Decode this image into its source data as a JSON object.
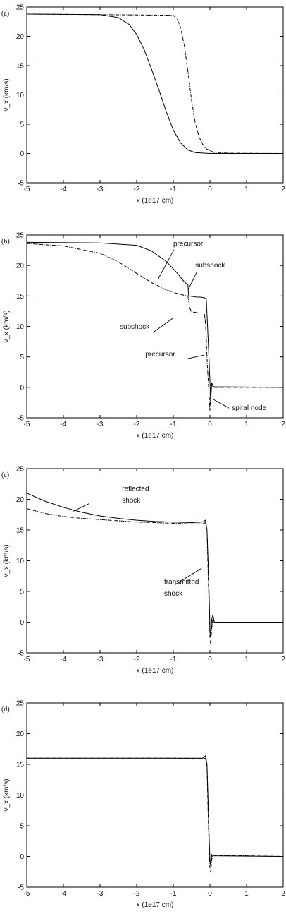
{
  "chart_data": [
    {
      "panel": "(a)",
      "type": "line",
      "xlabel": "x (1e17 cm)",
      "ylabel": "v_x (km/s)",
      "xlim": [
        -5,
        2
      ],
      "ylim": [
        -5,
        25
      ],
      "xticks": [
        "-5",
        "-4",
        "-3",
        "-2",
        "-1",
        "0",
        "1",
        "2"
      ],
      "yticks": [
        "-5",
        "0",
        "5",
        "10",
        "15",
        "20",
        "25"
      ],
      "grid": false,
      "annotations": [],
      "series": [
        {
          "style": "solid",
          "x": [
            -5,
            -3,
            -2.5,
            -2.2,
            -2.0,
            -1.8,
            -1.6,
            -1.4,
            -1.2,
            -1.0,
            -0.8,
            -0.6,
            -0.4,
            0,
            2
          ],
          "y": [
            23.8,
            23.7,
            23.2,
            22.0,
            20.3,
            17.8,
            14.5,
            11.0,
            7.3,
            4.0,
            1.8,
            0.6,
            0.15,
            0,
            0
          ]
        },
        {
          "style": "dashed",
          "x": [
            -5,
            -1.0,
            -0.9,
            -0.8,
            -0.7,
            -0.6,
            -0.5,
            -0.4,
            -0.3,
            -0.2,
            -0.1,
            0.1,
            0.5,
            2
          ],
          "y": [
            23.8,
            23.6,
            23.0,
            21.5,
            18.5,
            14.0,
            9.0,
            5.2,
            2.9,
            1.6,
            0.8,
            0.2,
            0.05,
            0
          ]
        }
      ]
    },
    {
      "panel": "(b)",
      "type": "line",
      "xlabel": "x (1e17 cm)",
      "ylabel": "v_x (km/s)",
      "xlim": [
        -5,
        2
      ],
      "ylim": [
        -5,
        25
      ],
      "xticks": [
        "-5",
        "-4",
        "-3",
        "-2",
        "-1",
        "0",
        "1",
        "2"
      ],
      "yticks": [
        "-5",
        "0",
        "5",
        "10",
        "15",
        "20",
        "25"
      ],
      "grid": false,
      "annotations": [
        {
          "text": "precursor",
          "x": -1.0,
          "y": 23.2
        },
        {
          "text": "subshock",
          "x": -0.4,
          "y": 19.7
        },
        {
          "text": "subshock",
          "x": -1.65,
          "y": 9.6
        },
        {
          "text": "precursor",
          "x": -0.95,
          "y": 5.1
        },
        {
          "text": "spiral node",
          "x": 0.6,
          "y": -3.7
        }
      ],
      "series": [
        {
          "style": "solid",
          "x": [
            -5,
            -3,
            -2.0,
            -1.6,
            -1.2,
            -0.9,
            -0.7,
            -0.6,
            -0.58,
            -0.45,
            -0.35,
            -0.25,
            -0.15,
            -0.1,
            -0.08,
            -0.05,
            -0.02,
            0.0,
            0.02,
            0.05,
            0.08,
            0.12,
            2
          ],
          "y": [
            23.8,
            23.7,
            23.3,
            22.4,
            20.7,
            18.8,
            17.3,
            16.8,
            15.0,
            14.9,
            14.8,
            14.8,
            14.7,
            14.5,
            12.0,
            8.0,
            4.0,
            1.0,
            -2.5,
            0.8,
            0.2,
            0.1,
            0
          ]
        },
        {
          "style": "dashed",
          "x": [
            -5,
            -4,
            -3,
            -2.5,
            -2.0,
            -1.6,
            -1.2,
            -0.9,
            -0.7,
            -0.6,
            -0.55,
            -0.5,
            -0.4,
            -0.3,
            -0.2,
            -0.15,
            -0.12,
            -0.1,
            -0.08,
            -0.06,
            -0.04,
            -0.02,
            0.0,
            0.02,
            0.04,
            0.08,
            0.12,
            2
          ],
          "y": [
            23.6,
            23.2,
            22.0,
            20.6,
            18.7,
            17.2,
            16.0,
            15.4,
            15.1,
            15.0,
            13.0,
            12.4,
            12.3,
            12.2,
            12.2,
            12.2,
            10.5,
            8.0,
            5.0,
            2.5,
            0.5,
            -1.5,
            -3.8,
            -1.0,
            0.5,
            0.1,
            0,
            0
          ]
        }
      ]
    },
    {
      "panel": "(c)",
      "type": "line",
      "xlabel": "x (1e17 cm)",
      "ylabel": "v_x (km/s)",
      "xlim": [
        -5,
        2
      ],
      "ylim": [
        -5,
        25
      ],
      "xticks": [
        "-5",
        "-4",
        "-3",
        "-2",
        "-1",
        "0",
        "1",
        "2"
      ],
      "yticks": [
        "-5",
        "0",
        "5",
        "10",
        "15",
        "20",
        "25"
      ],
      "grid": false,
      "annotations": [
        {
          "text": "reflected",
          "x": -2.4,
          "y": 21.4
        },
        {
          "text": "shock",
          "x": -2.4,
          "y": 19.5
        },
        {
          "text": "transmitted",
          "x": -1.25,
          "y": 6.2
        },
        {
          "text": "shock",
          "x": -1.25,
          "y": 4.3
        }
      ],
      "series": [
        {
          "style": "solid",
          "x": [
            -5,
            -4.5,
            -4.0,
            -3.5,
            -3.0,
            -2.5,
            -2.0,
            -1.5,
            -1.0,
            -0.5,
            -0.2,
            -0.12,
            -0.08,
            -0.05,
            -0.02,
            0.0,
            0.02,
            0.05,
            0.08,
            0.12,
            2
          ],
          "y": [
            21.0,
            19.7,
            18.7,
            17.9,
            17.3,
            16.9,
            16.6,
            16.4,
            16.3,
            16.2,
            16.3,
            16.6,
            15.0,
            10.0,
            4.0,
            -1.0,
            -2.5,
            0.5,
            1.2,
            0,
            0
          ]
        },
        {
          "style": "dashed",
          "x": [
            -5,
            -4.5,
            -4.0,
            -3.5,
            -3.0,
            -2.5,
            -2.0,
            -1.5,
            -1.0,
            -0.5,
            -0.2,
            -0.12,
            -0.08,
            -0.05,
            -0.02,
            0.0,
            0.02,
            0.05,
            0.08,
            0.12,
            2
          ],
          "y": [
            18.5,
            17.7,
            17.2,
            16.9,
            16.7,
            16.5,
            16.3,
            16.2,
            16.1,
            16.0,
            16.0,
            16.2,
            15.0,
            8.0,
            2.0,
            -2.5,
            -3.6,
            -1.0,
            0.6,
            0,
            0
          ]
        }
      ]
    },
    {
      "panel": "(d)",
      "type": "line",
      "xlabel": "x (1e17 cm)",
      "ylabel": "v_x (km/s)",
      "xlim": [
        -5,
        2
      ],
      "ylim": [
        -5,
        25
      ],
      "xticks": [
        "-5",
        "-4",
        "-3",
        "-2",
        "-1",
        "0",
        "1",
        "2"
      ],
      "yticks": [
        "-5",
        "0",
        "5",
        "10",
        "15",
        "20",
        "25"
      ],
      "grid": false,
      "annotations": [],
      "series": [
        {
          "style": "solid",
          "x": [
            -5,
            -1.0,
            -0.2,
            -0.12,
            -0.08,
            -0.05,
            -0.02,
            0.0,
            0.02,
            0.05,
            0.08,
            2
          ],
          "y": [
            16.0,
            16.0,
            16.0,
            16.4,
            15.0,
            9.0,
            3.0,
            -0.5,
            -1.5,
            0.3,
            0.1,
            0
          ]
        },
        {
          "style": "dashed",
          "x": [
            -5,
            -1.0,
            -0.2,
            -0.12,
            -0.08,
            -0.05,
            -0.02,
            0.0,
            0.02,
            0.05,
            0.08,
            2
          ],
          "y": [
            16.0,
            16.0,
            15.9,
            16.0,
            14.5,
            7.0,
            1.0,
            -2.0,
            -2.6,
            -0.5,
            0.2,
            0
          ]
        }
      ]
    }
  ]
}
